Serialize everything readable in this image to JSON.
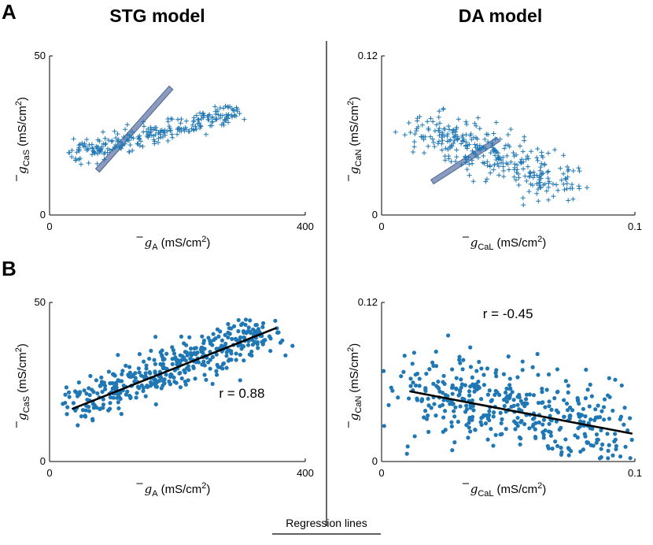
{
  "figure": {
    "panel_a_label": "A",
    "panel_b_label": "B",
    "col_left_title": "STG model",
    "col_right_title": "DA model",
    "footer_label": "Regression lines",
    "colors": {
      "points": "#1f77b4",
      "band": "#8a9bbf",
      "band_edge": "#4f6690",
      "line": "#000000",
      "axis": "#000000"
    }
  },
  "chart_data": [
    {
      "id": "stg-scatter-a",
      "type": "scatter",
      "marker": "plus",
      "xlabel_symbol": "g",
      "xlabel_sub": "A",
      "xlabel_unit": "(mS/cm",
      "xlabel_sup": "2",
      "ylabel_symbol": "g",
      "ylabel_sub": "CaS",
      "ylabel_unit": "(mS/cm",
      "ylabel_sup": "2",
      "xlim": [
        0,
        400
      ],
      "ylim": [
        0,
        50
      ],
      "xticks": [
        "0",
        "400"
      ],
      "yticks": [
        "0",
        "50"
      ],
      "cloud": {
        "x_start": 35,
        "y_start": 19,
        "x_end": 290,
        "y_end": 32,
        "spread": 1.8,
        "n": 260
      },
      "regression_band": {
        "x_start": 75,
        "y_start": 14,
        "x_end": 190,
        "y_end": 40
      }
    },
    {
      "id": "da-scatter-a",
      "type": "scatter",
      "marker": "plus",
      "xlabel_symbol": "g",
      "xlabel_sub": "CaL",
      "xlabel_unit": "(mS/cm",
      "xlabel_sup": "2",
      "ylabel_symbol": "g",
      "ylabel_sub": "CaN",
      "ylabel_unit": "(mS/cm",
      "ylabel_sup": "2",
      "xlim": [
        0,
        0.1
      ],
      "ylim": [
        0,
        0.12
      ],
      "xticks": [
        "0",
        "0.1"
      ],
      "yticks": [
        "0",
        "0.12"
      ],
      "cloud": {
        "x_start": 0.015,
        "y_start": 0.066,
        "x_end": 0.075,
        "y_end": 0.021,
        "spread": 0.009,
        "n": 320
      },
      "regression_band": {
        "x_start": 0.02,
        "y_start": 0.025,
        "x_end": 0.046,
        "y_end": 0.057
      }
    },
    {
      "id": "stg-scatter-b",
      "type": "scatter",
      "marker": "dot",
      "xlabel_symbol": "g",
      "xlabel_sub": "A",
      "xlabel_unit": "(mS/cm",
      "xlabel_sup": "2",
      "ylabel_symbol": "g",
      "ylabel_sub": "CaS",
      "ylabel_unit": "(mS/cm",
      "ylabel_sup": "2",
      "xlim": [
        0,
        400
      ],
      "ylim": [
        0,
        50
      ],
      "xticks": [
        "0",
        "400"
      ],
      "yticks": [
        "0",
        "50"
      ],
      "cloud": {
        "x_start": 45,
        "y_start": 18,
        "x_end": 340,
        "y_end": 41,
        "spread": 3.4,
        "n": 420
      },
      "regression_line": {
        "x1": 35,
        "y1": 16.5,
        "x2": 355,
        "y2": 42
      },
      "r_label": "r = 0.88",
      "r_pos": {
        "x": 265,
        "y": 20
      }
    },
    {
      "id": "da-scatter-b",
      "type": "scatter",
      "marker": "dot",
      "xlabel_symbol": "g",
      "xlabel_sub": "CaL",
      "xlabel_unit": "(mS/cm",
      "xlabel_sup": "2",
      "ylabel_symbol": "g",
      "ylabel_sub": "CaN",
      "ylabel_unit": "(mS/cm",
      "ylabel_sup": "2",
      "xlim": [
        0,
        0.1
      ],
      "ylim": [
        0,
        0.12
      ],
      "xticks": [
        "0",
        "0.1"
      ],
      "yticks": [
        "0",
        "0.12"
      ],
      "cloud": {
        "x_start": 0.012,
        "y_start": 0.057,
        "x_end": 0.098,
        "y_end": 0.022,
        "spread": 0.016,
        "n": 430
      },
      "regression_line": {
        "x1": 0.011,
        "y1": 0.053,
        "x2": 0.099,
        "y2": 0.021
      },
      "r_label": "r = -0.45",
      "r_pos": {
        "x": 0.04,
        "y": 0.108
      }
    }
  ]
}
